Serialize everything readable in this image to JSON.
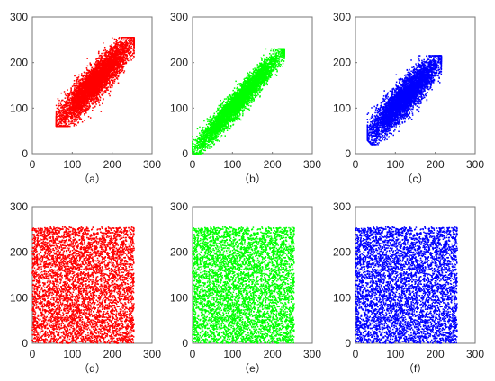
{
  "chart_data": [
    {
      "type": "scatter",
      "panel_label": "（a）",
      "color": "#ff0000",
      "pattern": "correlated",
      "xlim": [
        0,
        300
      ],
      "ylim": [
        0,
        300
      ],
      "xticks": [
        0,
        100,
        200,
        300
      ],
      "yticks": [
        0,
        100,
        200,
        300
      ],
      "series": [
        {
          "x_range": [
            60,
            255
          ],
          "y_range": [
            60,
            255
          ],
          "trend": "y ≈ x",
          "spread": 14
        }
      ]
    },
    {
      "type": "scatter",
      "panel_label": "（b）",
      "color": "#00ff00",
      "pattern": "correlated",
      "xlim": [
        0,
        300
      ],
      "ylim": [
        0,
        300
      ],
      "xticks": [
        0,
        100,
        200,
        300
      ],
      "yticks": [
        0,
        100,
        200,
        300
      ],
      "series": [
        {
          "x_range": [
            0,
            230
          ],
          "y_range": [
            0,
            230
          ],
          "trend": "y ≈ x",
          "spread": 10
        }
      ]
    },
    {
      "type": "scatter",
      "panel_label": "（c）",
      "color": "#0000ff",
      "pattern": "correlated",
      "xlim": [
        0,
        300
      ],
      "ylim": [
        0,
        300
      ],
      "xticks": [
        0,
        100,
        200,
        300
      ],
      "yticks": [
        0,
        100,
        200,
        300
      ],
      "series": [
        {
          "x_range": [
            30,
            215
          ],
          "y_range": [
            20,
            215
          ],
          "trend": "y ≈ x",
          "spread": 14
        }
      ]
    },
    {
      "type": "scatter",
      "panel_label": "（d）",
      "color": "#ff0000",
      "pattern": "uniform",
      "xlim": [
        0,
        300
      ],
      "ylim": [
        0,
        300
      ],
      "xticks": [
        0,
        100,
        200,
        300
      ],
      "yticks": [
        0,
        100,
        200,
        300
      ],
      "series": [
        {
          "x_range": [
            0,
            255
          ],
          "y_range": [
            0,
            255
          ]
        }
      ]
    },
    {
      "type": "scatter",
      "panel_label": "（e）",
      "color": "#00ff00",
      "pattern": "uniform",
      "xlim": [
        0,
        300
      ],
      "ylim": [
        0,
        300
      ],
      "xticks": [
        0,
        100,
        200,
        300
      ],
      "yticks": [
        0,
        100,
        200,
        300
      ],
      "series": [
        {
          "x_range": [
            0,
            255
          ],
          "y_range": [
            0,
            255
          ]
        }
      ]
    },
    {
      "type": "scatter",
      "panel_label": "（f）",
      "color": "#0000ff",
      "pattern": "uniform",
      "xlim": [
        0,
        300
      ],
      "ylim": [
        0,
        300
      ],
      "xticks": [
        0,
        100,
        200,
        300
      ],
      "yticks": [
        0,
        100,
        200,
        300
      ],
      "series": [
        {
          "x_range": [
            0,
            255
          ],
          "y_range": [
            0,
            255
          ]
        }
      ]
    }
  ]
}
